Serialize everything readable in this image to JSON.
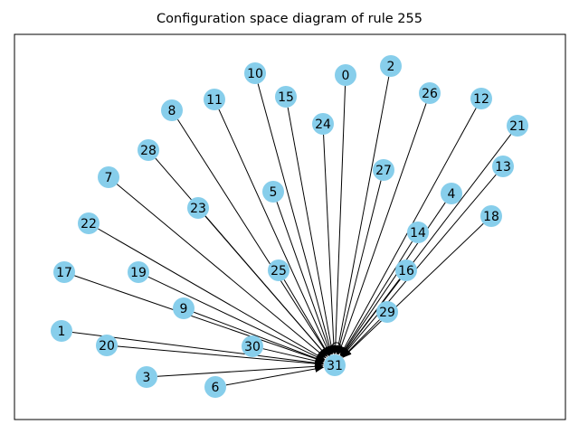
{
  "title": "Configuration space diagram of rule 255",
  "colors": {
    "node_fill": "#87CEEB",
    "edge": "#000000",
    "frame": "#000000"
  },
  "target_node": "31",
  "nodes": [
    {
      "id": "0"
    },
    {
      "id": "1"
    },
    {
      "id": "2"
    },
    {
      "id": "3"
    },
    {
      "id": "4"
    },
    {
      "id": "5"
    },
    {
      "id": "6"
    },
    {
      "id": "7"
    },
    {
      "id": "8"
    },
    {
      "id": "9"
    },
    {
      "id": "10"
    },
    {
      "id": "11"
    },
    {
      "id": "12"
    },
    {
      "id": "13"
    },
    {
      "id": "14"
    },
    {
      "id": "15"
    },
    {
      "id": "16"
    },
    {
      "id": "17"
    },
    {
      "id": "18"
    },
    {
      "id": "19"
    },
    {
      "id": "20"
    },
    {
      "id": "21"
    },
    {
      "id": "22"
    },
    {
      "id": "23"
    },
    {
      "id": "24"
    },
    {
      "id": "25"
    },
    {
      "id": "26"
    },
    {
      "id": "27"
    },
    {
      "id": "28"
    },
    {
      "id": "29"
    },
    {
      "id": "30"
    },
    {
      "id": "31"
    }
  ],
  "edges": [
    [
      "0",
      "31"
    ],
    [
      "1",
      "31"
    ],
    [
      "2",
      "31"
    ],
    [
      "3",
      "31"
    ],
    [
      "4",
      "31"
    ],
    [
      "5",
      "31"
    ],
    [
      "6",
      "31"
    ],
    [
      "7",
      "31"
    ],
    [
      "8",
      "31"
    ],
    [
      "9",
      "31"
    ],
    [
      "10",
      "31"
    ],
    [
      "11",
      "31"
    ],
    [
      "12",
      "31"
    ],
    [
      "13",
      "31"
    ],
    [
      "14",
      "31"
    ],
    [
      "15",
      "31"
    ],
    [
      "16",
      "31"
    ],
    [
      "17",
      "31"
    ],
    [
      "18",
      "31"
    ],
    [
      "19",
      "31"
    ],
    [
      "20",
      "31"
    ],
    [
      "21",
      "31"
    ],
    [
      "22",
      "31"
    ],
    [
      "23",
      "31"
    ],
    [
      "24",
      "31"
    ],
    [
      "25",
      "31"
    ],
    [
      "26",
      "31"
    ],
    [
      "27",
      "31"
    ],
    [
      "28",
      "31"
    ],
    [
      "29",
      "31"
    ],
    [
      "30",
      "31"
    ],
    [
      "31",
      "31"
    ]
  ]
}
